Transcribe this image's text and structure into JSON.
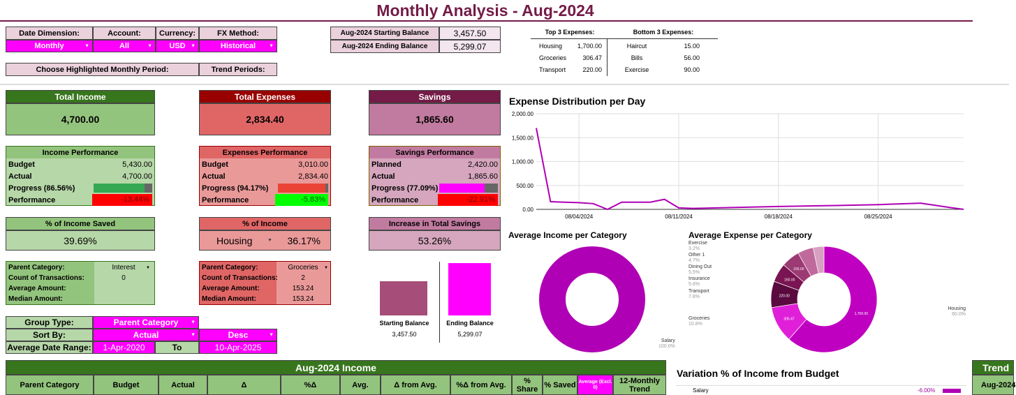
{
  "title": "Monthly Analysis - Aug-2024",
  "filters": {
    "date_dim_label": "Date Dimension:",
    "date_dim_value": "Monthly",
    "account_label": "Account:",
    "account_value": "All",
    "currency_label": "Currency:",
    "currency_value": "USD",
    "fx_label": "FX Method:",
    "fx_value": "Historical",
    "period_label": "Choose Highlighted Monthly Period:",
    "trend_label": "Trend Periods:"
  },
  "balances": {
    "start_label": "Aug-2024 Starting Balance",
    "start_value": "3,457.50",
    "end_label": "Aug-2024 Ending Balance",
    "end_value": "5,299.07"
  },
  "top3": {
    "title": "Top 3 Expenses:",
    "items": [
      {
        "name": "Housing",
        "value": "1,700.00"
      },
      {
        "name": "Groceries",
        "value": "306.47"
      },
      {
        "name": "Transport",
        "value": "220.00"
      }
    ]
  },
  "bottom3": {
    "title": "Bottom 3 Expenses:",
    "items": [
      {
        "name": "Haircut",
        "value": "15.00"
      },
      {
        "name": "Bills",
        "value": "56.00"
      },
      {
        "name": "Exercise",
        "value": "90.00"
      }
    ]
  },
  "income": {
    "title": "Total Income",
    "total": "4,700.00",
    "perf_title": "Income Performance",
    "budget_label": "Budget",
    "budget": "5,430.00",
    "actual_label": "Actual",
    "actual": "4,700.00",
    "progress_label": "Progress (86.56%)",
    "progress": 0.8656,
    "performance_label": "Performance",
    "performance": "-13.44%",
    "saved_title": "% of Income Saved",
    "saved": "39.69%",
    "parent_label": "Parent Category:",
    "parent_value": "Interest",
    "count_label": "Count of Transactions:",
    "count": "0",
    "avg_label": "Average Amount:",
    "avg": "",
    "median_label": "Median Amount:",
    "median": ""
  },
  "expenses": {
    "title": "Total Expenses",
    "total": "2,834.40",
    "perf_title": "Expenses Performance",
    "budget_label": "Budget",
    "budget": "3,010.00",
    "actual_label": "Actual",
    "actual": "2,834.40",
    "progress_label": "Progress (94.17%)",
    "progress": 0.9417,
    "performance_label": "Performance",
    "performance": "-5.83%",
    "pct_title": "% of Income",
    "pct_category": "Housing",
    "pct_value": "36.17%",
    "parent_label": "Parent Category:",
    "parent_value": "Groceries",
    "count_label": "Count of Transactions:",
    "count": "2",
    "avg_label": "Average Amount:",
    "avg": "153.24",
    "median_label": "Median Amount:",
    "median": "153.24"
  },
  "savings": {
    "title": "Savings",
    "total": "1,865.60",
    "perf_title": "Savings Performance",
    "budget_label": "Planned",
    "budget": "2,420.00",
    "actual_label": "Actual",
    "actual": "1,865.60",
    "progress_label": "Progress (77.09%)",
    "progress": 0.7709,
    "performance_label": "Performance",
    "performance": "-22.91%",
    "incr_title": "Increase in Total Savings",
    "incr": "53.26%",
    "bar_start_label": "Starting Balance",
    "bar_start_value": "3,457.50",
    "bar_end_label": "Ending Balance",
    "bar_end_value": "5,299.07"
  },
  "group": {
    "type_label": "Group Type:",
    "type_value": "Parent Category",
    "sort_label": "Sort By:",
    "sort_value": "Actual",
    "sort_dir": "Desc",
    "range_label": "Average Date Range:",
    "range_from": "1-Apr-2020",
    "to_label": "To",
    "range_to": "10-Apr-2025"
  },
  "income_table": {
    "title": "Aug-2024 Income",
    "headers": [
      "Parent Category",
      "Budget",
      "Actual",
      "Δ",
      "%Δ",
      "Avg.",
      "Δ from Avg.",
      "%Δ from Avg.",
      "% Share",
      "% Saved",
      "Average (Excl. 0)",
      "12-Monthly Trend"
    ]
  },
  "chart_data": [
    {
      "type": "line",
      "title": "Expense Distribution per Day",
      "x": [
        "08/01/2024",
        "08/02/2024",
        "08/03/2024",
        "08/04/2024",
        "08/05/2024",
        "08/06/2024",
        "08/07/2024",
        "08/08/2024",
        "08/09/2024",
        "08/10/2024",
        "08/11/2024",
        "08/12/2024",
        "08/15/2024",
        "08/18/2024",
        "08/22/2024",
        "08/25/2024",
        "08/28/2024",
        "08/30/2024",
        "08/31/2024"
      ],
      "y": [
        1700,
        160,
        150,
        140,
        120,
        0,
        150,
        150,
        150,
        210,
        30,
        20,
        40,
        60,
        80,
        100,
        130,
        40,
        0
      ],
      "x_ticks": [
        "08/04/2024",
        "08/11/2024",
        "08/18/2024",
        "08/25/2024"
      ],
      "y_ticks": [
        "2,000.00",
        "1,500.00",
        "1,000.00",
        "500.00",
        "0.00"
      ],
      "ylim": [
        0,
        2000
      ],
      "color": "#b000b5"
    },
    {
      "type": "pie",
      "title": "Average Income per Category",
      "labels": [
        "Salary"
      ],
      "values": [
        100.0
      ],
      "value_labels": [
        "100.0%"
      ],
      "color": "#b000b5"
    },
    {
      "type": "pie",
      "title": "Average Expense per Category",
      "labels": [
        "Housing",
        "Groceries",
        "Transport",
        "Insurance",
        "Dining Out",
        "Other 1",
        "Exercise"
      ],
      "values": [
        60.0,
        10.8,
        7.8,
        5.6,
        5.5,
        4.7,
        3.2
      ],
      "value_labels": [
        "60.0%",
        "10.8%",
        "7.8%",
        "5.6%",
        "5.5%",
        "4.7%",
        "3.2%"
      ],
      "slice_values": [
        "1,700.00",
        "306.47",
        "220.00",
        "160.00",
        "155.00",
        "",
        ""
      ],
      "colors": [
        "#c000c0",
        "#e020d8",
        "#5a0a3e",
        "#7a1452",
        "#9c3a74",
        "#c06a9c",
        "#d8a0c0"
      ]
    },
    {
      "type": "bar",
      "title": "Variation % of Income from Budget",
      "categories": [
        "Salary"
      ],
      "values": [
        -6.0
      ],
      "value_labels": [
        "-6.00%"
      ]
    }
  ],
  "right_table": {
    "title": "Trend",
    "col": "Aug-2024"
  }
}
